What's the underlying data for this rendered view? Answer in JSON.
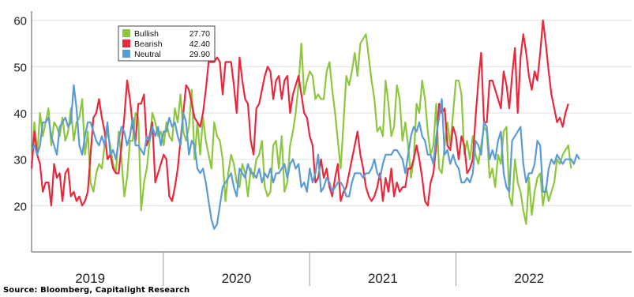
{
  "source": "Source: Bloomberg, Capitalight Research",
  "chart_data": {
    "type": "line",
    "title": "",
    "xlabel": "",
    "ylabel": "",
    "ylim": [
      10,
      62
    ],
    "yticks": [
      20,
      30,
      40,
      50,
      60
    ],
    "xlim": [
      2018.6,
      2022.7
    ],
    "year_labels": [
      {
        "label": "2019",
        "x": 2019.0
      },
      {
        "label": "2020",
        "x": 2020.0
      },
      {
        "label": "2021",
        "x": 2021.0
      },
      {
        "label": "2022",
        "x": 2022.0
      }
    ],
    "year_separators": [
      2019.5,
      2020.5,
      2021.5
    ],
    "legend_position": "top-left",
    "grid": "horizontal",
    "x_start": 2018.6,
    "x_step": 0.0192,
    "series": [
      {
        "name": "Bullish",
        "legend_value": "27.70",
        "color": "#8dc63f",
        "values": [
          29,
          38,
          31,
          40,
          35,
          38,
          41,
          33,
          38,
          37,
          35,
          39,
          34,
          36,
          41,
          34,
          38,
          39,
          43,
          31,
          36,
          25,
          23,
          27,
          29,
          28,
          33,
          36,
          33,
          29,
          27,
          36,
          30,
          22,
          26,
          34,
          34,
          40,
          39,
          19,
          25,
          28,
          34,
          40,
          38,
          35,
          36,
          33,
          38,
          35,
          34,
          41,
          38,
          44,
          36,
          34,
          37,
          45,
          30,
          38,
          31,
          39,
          34,
          31,
          28,
          38,
          35,
          34,
          30,
          21,
          27,
          31,
          29,
          25,
          24,
          29,
          27,
          22,
          28,
          26,
          30,
          31,
          34,
          24,
          22,
          23,
          33,
          34,
          28,
          35,
          23,
          25,
          33,
          36,
          40,
          46,
          55,
          44,
          47,
          49,
          48,
          43,
          44,
          43,
          43,
          49,
          51,
          45,
          40,
          34,
          28,
          38,
          48,
          46,
          49,
          53,
          48,
          55,
          56,
          57,
          52,
          47,
          43,
          36,
          37,
          35,
          47,
          42,
          35,
          37,
          46,
          43,
          34,
          38,
          33,
          26,
          30,
          42,
          40,
          47,
          43,
          36,
          31,
          33,
          42,
          28,
          27,
          33,
          38,
          33,
          40,
          47,
          47,
          44,
          31,
          34,
          30,
          35,
          31,
          29,
          33,
          37,
          36,
          26,
          28,
          24,
          31,
          29,
          36,
          37,
          22,
          20,
          30,
          25,
          23,
          19,
          16,
          26,
          18,
          23,
          26,
          27,
          20,
          24,
          21,
          23,
          25,
          30,
          29,
          31,
          32,
          33,
          28
        ]
      },
      {
        "name": "Bearish",
        "legend_value": "42.40",
        "color": "#e8283c",
        "values": [
          28,
          36,
          31,
          29,
          23,
          25,
          25,
          20,
          29,
          26,
          27,
          21,
          27,
          28,
          22,
          23,
          21,
          22,
          20,
          21,
          23,
          31,
          39,
          40,
          43,
          39,
          36,
          30,
          31,
          28,
          27,
          27,
          33,
          39,
          47,
          43,
          37,
          34,
          42,
          42,
          44,
          33,
          35,
          38,
          25,
          27,
          29,
          31,
          30,
          22,
          21,
          24,
          28,
          34,
          40,
          46,
          45,
          42,
          39,
          38,
          37,
          40,
          45,
          51,
          51,
          51,
          52,
          51,
          44,
          51,
          51,
          51,
          46,
          40,
          52,
          47,
          43,
          42,
          34,
          31,
          41,
          42,
          45,
          48,
          50,
          49,
          43,
          47,
          48,
          43,
          47,
          48,
          40,
          44,
          46,
          48,
          44,
          40,
          39,
          35,
          33,
          25,
          26,
          30,
          26,
          28,
          24,
          22,
          26,
          29,
          21,
          23,
          24,
          27,
          30,
          33,
          36,
          31,
          28,
          24,
          22,
          21,
          22,
          24,
          27,
          21,
          26,
          23,
          28,
          22,
          25,
          23,
          24,
          24,
          28,
          28,
          30,
          33,
          30,
          26,
          21,
          20,
          25,
          27,
          33,
          42,
          40,
          41,
          33,
          32,
          37,
          35,
          30,
          35,
          33,
          27,
          28,
          30,
          39,
          47,
          53,
          38,
          38,
          47,
          47,
          45,
          43,
          41,
          49,
          46,
          41,
          48,
          54,
          40,
          52,
          57,
          53,
          48,
          45,
          49,
          47,
          53,
          60,
          55,
          49,
          44,
          41,
          38,
          39,
          37,
          40,
          42
        ]
      },
      {
        "name": "Neutral",
        "legend_value": "29.90",
        "color": "#5b9bd5",
        "values": [
          32,
          33,
          31,
          33,
          38,
          38,
          39,
          35,
          33,
          31,
          37,
          38,
          39,
          37,
          38,
          46,
          41,
          33,
          31,
          35,
          38,
          38,
          36,
          34,
          33,
          35,
          33,
          38,
          31,
          32,
          30,
          34,
          37,
          36,
          33,
          35,
          39,
          33,
          33,
          32,
          31,
          35,
          34,
          37,
          35,
          37,
          33,
          36,
          36,
          39,
          37,
          38,
          35,
          33,
          40,
          38,
          31,
          34,
          33,
          28,
          27,
          28,
          25,
          21,
          17,
          15,
          16,
          20,
          24,
          25,
          26,
          27,
          24,
          22,
          28,
          27,
          26,
          29,
          27,
          27,
          26,
          28,
          25,
          27,
          26,
          28,
          25,
          27,
          27,
          28,
          29,
          26,
          29,
          30,
          28,
          29,
          24,
          25,
          23,
          28,
          25,
          27,
          31,
          23,
          24,
          26,
          25,
          23,
          24,
          25,
          25,
          24,
          22,
          22,
          25,
          27,
          27,
          27,
          26,
          27,
          27,
          28,
          30,
          27,
          26,
          29,
          31,
          31,
          31,
          32,
          32,
          31,
          30,
          27,
          31,
          35,
          37,
          36,
          38,
          35,
          34,
          31,
          31,
          29,
          35,
          39,
          43,
          31,
          32,
          29,
          31,
          29,
          28,
          25,
          25,
          26,
          25,
          27,
          34,
          33,
          31,
          38,
          37,
          30,
          32,
          30,
          34,
          36,
          27,
          24,
          23,
          34,
          35,
          36,
          37,
          29,
          25,
          27,
          27,
          29,
          34,
          33,
          23,
          23,
          28,
          30,
          29,
          31,
          30,
          29,
          30,
          30,
          30,
          29,
          31,
          30
        ]
      }
    ]
  }
}
